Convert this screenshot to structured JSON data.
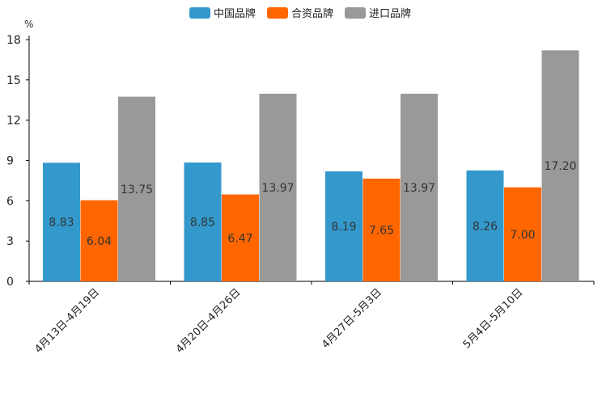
{
  "chart_data": {
    "type": "bar",
    "unit": "%",
    "categories": [
      "4月13日-4月19日",
      "4月20日-4月26日",
      "4月27日-5月3日",
      "5月4日-5月10日"
    ],
    "series": [
      {
        "name": "中国品牌",
        "color": "#3399cc",
        "values": [
          8.83,
          8.85,
          8.19,
          8.26
        ],
        "labels": [
          "8.83",
          "8.85",
          "8.19",
          "8.26"
        ]
      },
      {
        "name": "合资品牌",
        "color": "#ff6600",
        "values": [
          6.04,
          6.47,
          7.65,
          7.0
        ],
        "labels": [
          "6.04",
          "6.47",
          "7.65",
          "7.00"
        ]
      },
      {
        "name": "进口品牌",
        "color": "#999999",
        "values": [
          13.75,
          13.97,
          13.97,
          17.2
        ],
        "labels": [
          "13.75",
          "13.97",
          "13.97",
          "17.20"
        ]
      }
    ],
    "ylim": [
      0,
      18
    ],
    "yticks": [
      "0",
      "3",
      "6",
      "9",
      "12",
      "15",
      "18"
    ],
    "legend_position": "top-center",
    "grid": false
  }
}
